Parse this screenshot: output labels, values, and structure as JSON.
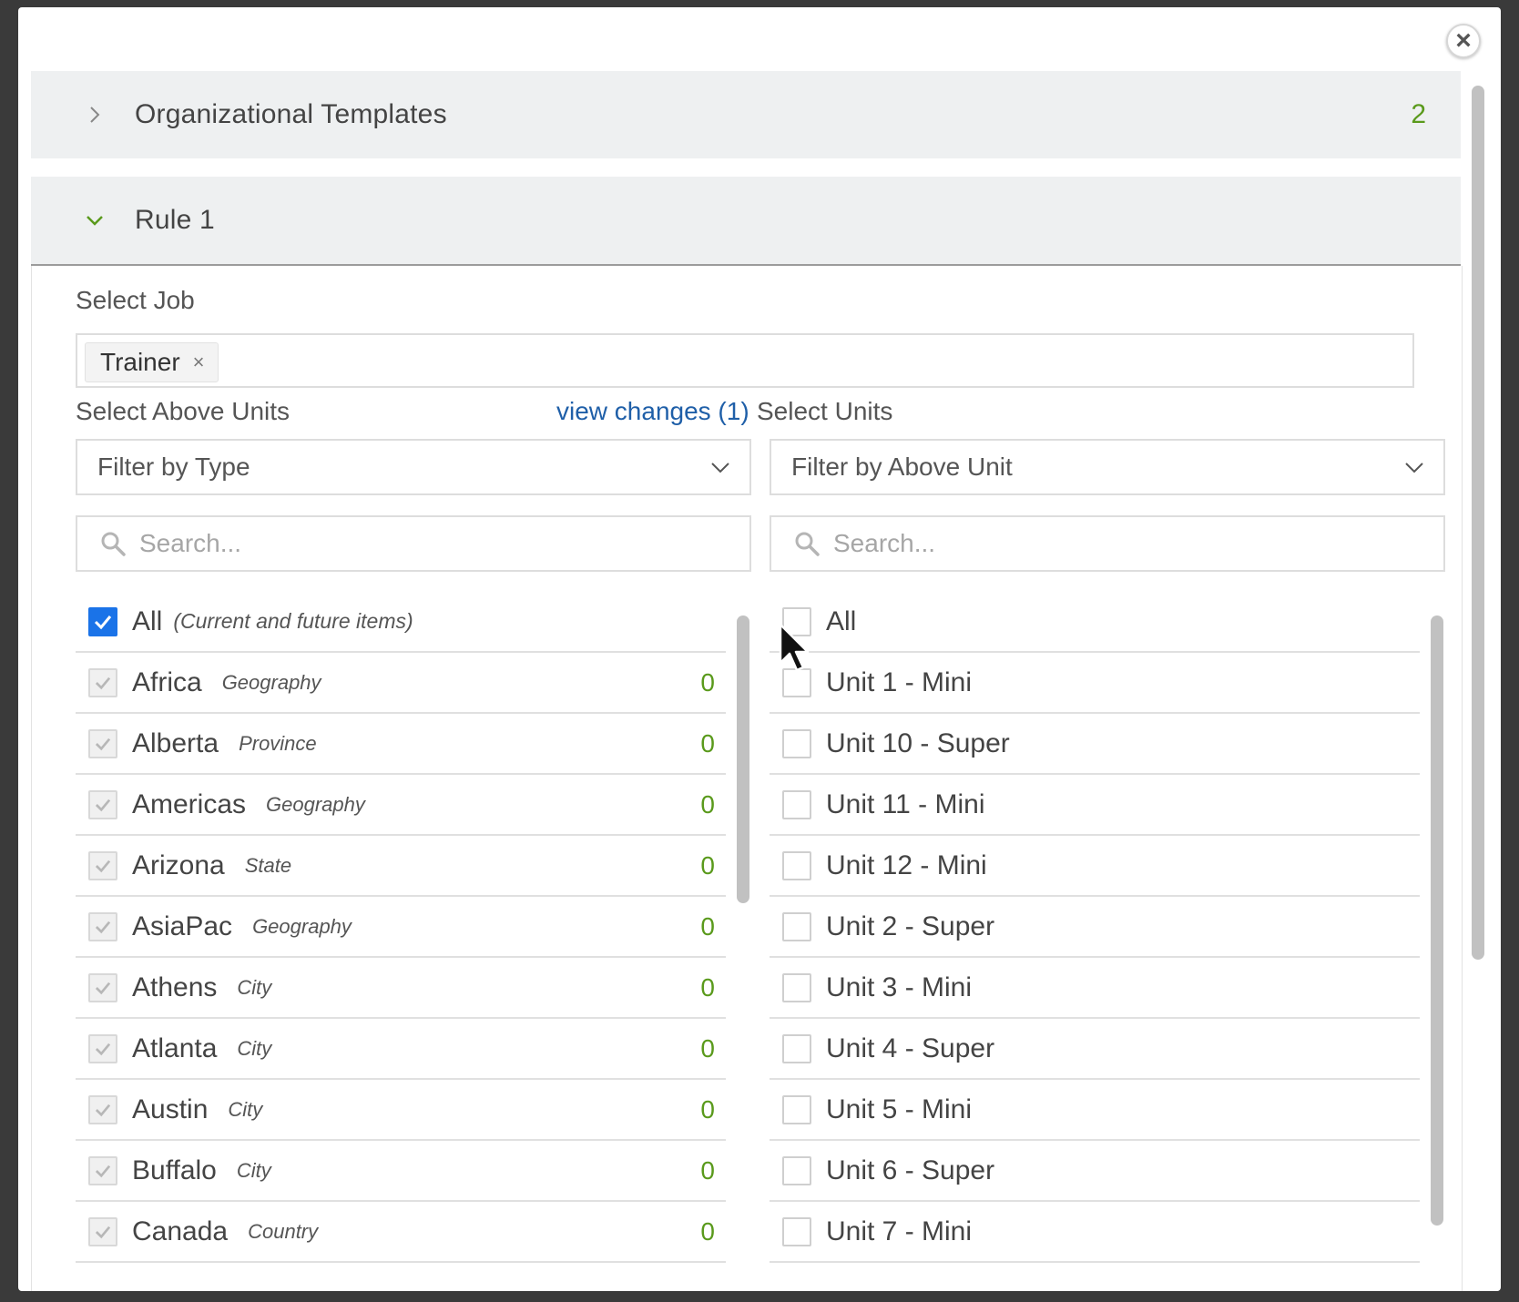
{
  "close": {
    "glyph": "×"
  },
  "accordions": [
    {
      "title": "Organizational Templates",
      "count": "2",
      "expanded": false
    },
    {
      "title": "Rule 1",
      "expanded": true
    }
  ],
  "rule": {
    "select_job": {
      "label": "Select Job",
      "chips": [
        {
          "label": "Trainer",
          "remove": "×"
        }
      ]
    },
    "above_units": {
      "label": "Select Above Units",
      "view_changes": "view changes (1)",
      "filter": {
        "value": "Filter by Type"
      },
      "search": {
        "placeholder": "Search..."
      },
      "all": {
        "label": "All",
        "note": "(Current and future items)",
        "checked": true
      },
      "items": [
        {
          "name": "Africa",
          "type": "Geography",
          "count": "0"
        },
        {
          "name": "Alberta",
          "type": "Province",
          "count": "0"
        },
        {
          "name": "Americas",
          "type": "Geography",
          "count": "0"
        },
        {
          "name": "Arizona",
          "type": "State",
          "count": "0"
        },
        {
          "name": "AsiaPac",
          "type": "Geography",
          "count": "0"
        },
        {
          "name": "Athens",
          "type": "City",
          "count": "0"
        },
        {
          "name": "Atlanta",
          "type": "City",
          "count": "0"
        },
        {
          "name": "Austin",
          "type": "City",
          "count": "0"
        },
        {
          "name": "Buffalo",
          "type": "City",
          "count": "0"
        },
        {
          "name": "Canada",
          "type": "Country",
          "count": "0"
        }
      ]
    },
    "units": {
      "label": "Select Units",
      "filter": {
        "value": "Filter by Above Unit"
      },
      "search": {
        "placeholder": "Search..."
      },
      "all": {
        "label": "All",
        "checked": false
      },
      "items": [
        {
          "name": "Unit 1 - Mini"
        },
        {
          "name": "Unit 10 - Super"
        },
        {
          "name": "Unit 11 - Mini"
        },
        {
          "name": "Unit 12 - Mini"
        },
        {
          "name": "Unit 2 - Super"
        },
        {
          "name": "Unit 3 - Mini"
        },
        {
          "name": "Unit 4 - Super"
        },
        {
          "name": "Unit 5 - Mini"
        },
        {
          "name": "Unit 6 - Super"
        },
        {
          "name": "Unit 7 - Mini"
        }
      ]
    }
  },
  "colors": {
    "accent_green": "#5a9a1c",
    "link_blue": "#1f5fa8",
    "checkbox_blue": "#1a73e8"
  },
  "icons": [
    "close-icon",
    "chevron-right-icon",
    "chevron-down-icon",
    "search-icon",
    "checkmark-icon",
    "mouse-cursor-icon"
  ]
}
